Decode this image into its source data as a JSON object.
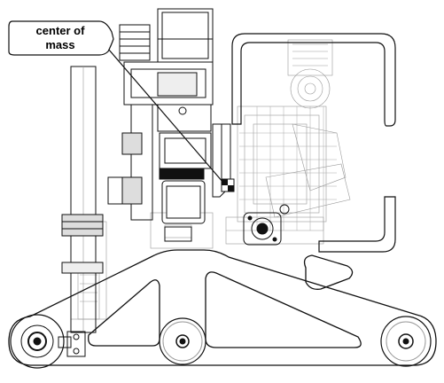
{
  "callout": {
    "line1": "center of",
    "line2": "mass"
  },
  "colors": {
    "ink": "#111111",
    "ghost": "#9a9a9a",
    "mid": "#555555",
    "background": "#ffffff"
  },
  "icons": [
    "center-of-mass-marker-icon",
    "pivot-bearing-icon"
  ]
}
